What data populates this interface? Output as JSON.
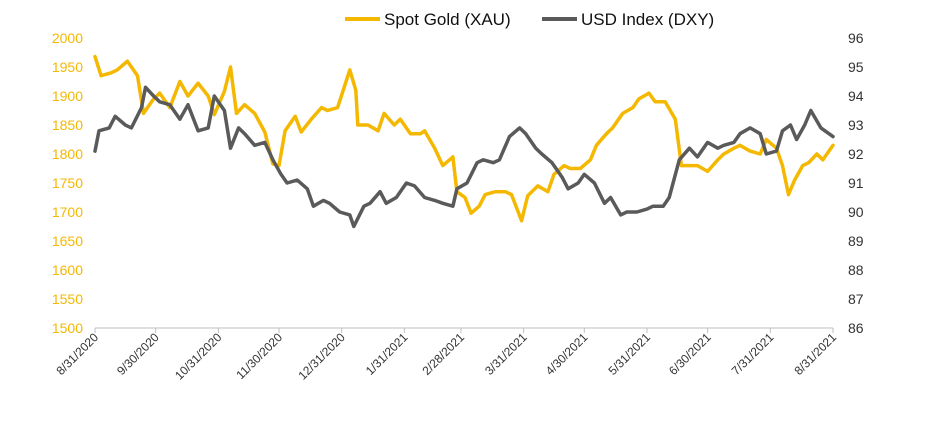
{
  "chart_data": {
    "type": "line",
    "title": "",
    "xlabel": "",
    "ylabel": "",
    "legend_position": "top-center",
    "grid": false,
    "x_tick_labels": [
      "8/31/2020",
      "9/30/2020",
      "10/31/2020",
      "11/30/2020",
      "12/31/2020",
      "1/31/2021",
      "2/28/2021",
      "3/31/2021",
      "4/30/2021",
      "5/31/2021",
      "6/30/2021",
      "7/31/2021",
      "8/31/2021"
    ],
    "y_left": {
      "min": 1500,
      "max": 2000,
      "ticks": [
        1500,
        1550,
        1600,
        1650,
        1700,
        1750,
        1800,
        1850,
        1900,
        1950,
        2000
      ],
      "color": "#F5B800"
    },
    "y_right": {
      "min": 86,
      "max": 96,
      "ticks": [
        86,
        87,
        88,
        89,
        90,
        91,
        92,
        93,
        94,
        95,
        96
      ],
      "color": "#333333"
    },
    "series": [
      {
        "name": "Spot Gold (XAU)",
        "axis": "left",
        "color": "#F5B800",
        "points": [
          [
            "2020-08-31",
            1968
          ],
          [
            "2020-09-03",
            1935
          ],
          [
            "2020-09-08",
            1940
          ],
          [
            "2020-09-11",
            1945
          ],
          [
            "2020-09-16",
            1960
          ],
          [
            "2020-09-21",
            1935
          ],
          [
            "2020-09-24",
            1870
          ],
          [
            "2020-09-29",
            1895
          ],
          [
            "2020-10-02",
            1905
          ],
          [
            "2020-10-07",
            1880
          ],
          [
            "2020-10-12",
            1925
          ],
          [
            "2020-10-16",
            1900
          ],
          [
            "2020-10-21",
            1922
          ],
          [
            "2020-10-26",
            1900
          ],
          [
            "2020-10-29",
            1868
          ],
          [
            "2020-11-03",
            1908
          ],
          [
            "2020-11-06",
            1950
          ],
          [
            "2020-11-09",
            1870
          ],
          [
            "2020-11-13",
            1885
          ],
          [
            "2020-11-18",
            1870
          ],
          [
            "2020-11-23",
            1838
          ],
          [
            "2020-11-27",
            1783
          ],
          [
            "2020-11-30",
            1780
          ],
          [
            "2020-12-03",
            1840
          ],
          [
            "2020-12-08",
            1865
          ],
          [
            "2020-12-11",
            1838
          ],
          [
            "2020-12-16",
            1860
          ],
          [
            "2020-12-21",
            1880
          ],
          [
            "2020-12-24",
            1875
          ],
          [
            "2020-12-29",
            1880
          ],
          [
            "2021-01-04",
            1945
          ],
          [
            "2021-01-07",
            1910
          ],
          [
            "2021-01-08",
            1850
          ],
          [
            "2021-01-13",
            1850
          ],
          [
            "2021-01-18",
            1840
          ],
          [
            "2021-01-21",
            1870
          ],
          [
            "2021-01-26",
            1850
          ],
          [
            "2021-01-29",
            1860
          ],
          [
            "2021-02-03",
            1835
          ],
          [
            "2021-02-08",
            1835
          ],
          [
            "2021-02-10",
            1840
          ],
          [
            "2021-02-15",
            1810
          ],
          [
            "2021-02-19",
            1780
          ],
          [
            "2021-02-24",
            1795
          ],
          [
            "2021-02-26",
            1735
          ],
          [
            "2021-03-02",
            1725
          ],
          [
            "2021-03-05",
            1698
          ],
          [
            "2021-03-09",
            1710
          ],
          [
            "2021-03-12",
            1730
          ],
          [
            "2021-03-17",
            1735
          ],
          [
            "2021-03-22",
            1735
          ],
          [
            "2021-03-25",
            1730
          ],
          [
            "2021-03-30",
            1685
          ],
          [
            "2021-04-02",
            1728
          ],
          [
            "2021-04-07",
            1745
          ],
          [
            "2021-04-12",
            1735
          ],
          [
            "2021-04-15",
            1765
          ],
          [
            "2021-04-20",
            1780
          ],
          [
            "2021-04-23",
            1775
          ],
          [
            "2021-04-28",
            1775
          ],
          [
            "2021-05-03",
            1790
          ],
          [
            "2021-05-06",
            1815
          ],
          [
            "2021-05-11",
            1835
          ],
          [
            "2021-05-14",
            1845
          ],
          [
            "2021-05-19",
            1870
          ],
          [
            "2021-05-24",
            1880
          ],
          [
            "2021-05-27",
            1895
          ],
          [
            "2021-06-01",
            1905
          ],
          [
            "2021-06-04",
            1890
          ],
          [
            "2021-06-09",
            1890
          ],
          [
            "2021-06-14",
            1860
          ],
          [
            "2021-06-17",
            1780
          ],
          [
            "2021-06-22",
            1780
          ],
          [
            "2021-06-25",
            1780
          ],
          [
            "2021-06-30",
            1770
          ],
          [
            "2021-07-05",
            1790
          ],
          [
            "2021-07-08",
            1800
          ],
          [
            "2021-07-13",
            1810
          ],
          [
            "2021-07-16",
            1815
          ],
          [
            "2021-07-21",
            1805
          ],
          [
            "2021-07-26",
            1800
          ],
          [
            "2021-07-29",
            1825
          ],
          [
            "2021-08-03",
            1810
          ],
          [
            "2021-08-06",
            1780
          ],
          [
            "2021-08-09",
            1730
          ],
          [
            "2021-08-12",
            1755
          ],
          [
            "2021-08-16",
            1780
          ],
          [
            "2021-08-19",
            1785
          ],
          [
            "2021-08-23",
            1800
          ],
          [
            "2021-08-26",
            1790
          ],
          [
            "2021-08-31",
            1815
          ]
        ]
      },
      {
        "name": "USD Index (DXY)",
        "axis": "right",
        "color": "#5A5A5A",
        "points": [
          [
            "2020-08-31",
            92.1
          ],
          [
            "2020-09-02",
            92.8
          ],
          [
            "2020-09-07",
            92.9
          ],
          [
            "2020-09-10",
            93.3
          ],
          [
            "2020-09-15",
            93.0
          ],
          [
            "2020-09-18",
            92.9
          ],
          [
            "2020-09-23",
            93.6
          ],
          [
            "2020-09-25",
            94.3
          ],
          [
            "2020-09-29",
            94.0
          ],
          [
            "2020-10-02",
            93.8
          ],
          [
            "2020-10-07",
            93.7
          ],
          [
            "2020-10-12",
            93.2
          ],
          [
            "2020-10-16",
            93.7
          ],
          [
            "2020-10-21",
            92.8
          ],
          [
            "2020-10-26",
            92.9
          ],
          [
            "2020-10-29",
            94.0
          ],
          [
            "2020-11-03",
            93.5
          ],
          [
            "2020-11-06",
            92.2
          ],
          [
            "2020-11-10",
            92.9
          ],
          [
            "2020-11-13",
            92.7
          ],
          [
            "2020-11-18",
            92.3
          ],
          [
            "2020-11-23",
            92.4
          ],
          [
            "2020-11-27",
            91.8
          ],
          [
            "2020-12-01",
            91.3
          ],
          [
            "2020-12-04",
            91.0
          ],
          [
            "2020-12-09",
            91.1
          ],
          [
            "2020-12-14",
            90.8
          ],
          [
            "2020-12-17",
            90.2
          ],
          [
            "2020-12-22",
            90.4
          ],
          [
            "2020-12-25",
            90.3
          ],
          [
            "2020-12-30",
            90.0
          ],
          [
            "2021-01-04",
            89.9
          ],
          [
            "2021-01-06",
            89.5
          ],
          [
            "2021-01-11",
            90.2
          ],
          [
            "2021-01-14",
            90.3
          ],
          [
            "2021-01-19",
            90.7
          ],
          [
            "2021-01-22",
            90.3
          ],
          [
            "2021-01-27",
            90.5
          ],
          [
            "2021-02-01",
            91.0
          ],
          [
            "2021-02-05",
            90.9
          ],
          [
            "2021-02-10",
            90.5
          ],
          [
            "2021-02-15",
            90.4
          ],
          [
            "2021-02-19",
            90.3
          ],
          [
            "2021-02-24",
            90.2
          ],
          [
            "2021-02-26",
            90.8
          ],
          [
            "2021-03-03",
            91.0
          ],
          [
            "2021-03-08",
            91.7
          ],
          [
            "2021-03-11",
            91.8
          ],
          [
            "2021-03-16",
            91.7
          ],
          [
            "2021-03-19",
            91.8
          ],
          [
            "2021-03-24",
            92.6
          ],
          [
            "2021-03-29",
            92.9
          ],
          [
            "2021-04-01",
            92.7
          ],
          [
            "2021-04-06",
            92.2
          ],
          [
            "2021-04-09",
            92.0
          ],
          [
            "2021-04-14",
            91.7
          ],
          [
            "2021-04-19",
            91.2
          ],
          [
            "2021-04-22",
            90.8
          ],
          [
            "2021-04-27",
            91.0
          ],
          [
            "2021-04-30",
            91.3
          ],
          [
            "2021-05-05",
            91.0
          ],
          [
            "2021-05-10",
            90.3
          ],
          [
            "2021-05-13",
            90.5
          ],
          [
            "2021-05-18",
            89.9
          ],
          [
            "2021-05-21",
            90.0
          ],
          [
            "2021-05-26",
            90.0
          ],
          [
            "2021-05-31",
            90.1
          ],
          [
            "2021-06-03",
            90.2
          ],
          [
            "2021-06-08",
            90.2
          ],
          [
            "2021-06-11",
            90.5
          ],
          [
            "2021-06-16",
            91.8
          ],
          [
            "2021-06-21",
            92.2
          ],
          [
            "2021-06-25",
            91.9
          ],
          [
            "2021-06-30",
            92.4
          ],
          [
            "2021-07-05",
            92.2
          ],
          [
            "2021-07-08",
            92.3
          ],
          [
            "2021-07-13",
            92.4
          ],
          [
            "2021-07-16",
            92.7
          ],
          [
            "2021-07-21",
            92.9
          ],
          [
            "2021-07-26",
            92.7
          ],
          [
            "2021-07-29",
            92.0
          ],
          [
            "2021-08-03",
            92.1
          ],
          [
            "2021-08-06",
            92.8
          ],
          [
            "2021-08-10",
            93.0
          ],
          [
            "2021-08-13",
            92.5
          ],
          [
            "2021-08-17",
            93.0
          ],
          [
            "2021-08-20",
            93.5
          ],
          [
            "2021-08-25",
            92.9
          ],
          [
            "2021-08-31",
            92.6
          ]
        ]
      }
    ]
  }
}
